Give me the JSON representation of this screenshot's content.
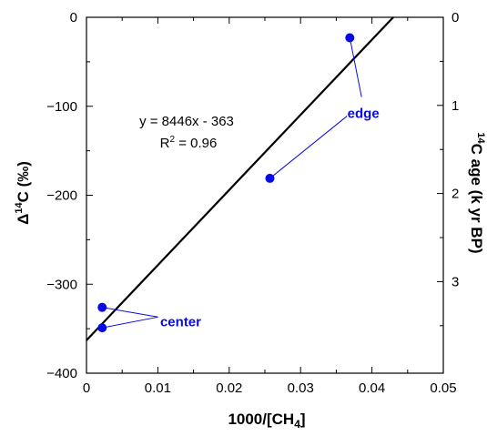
{
  "chart_data": {
    "type": "scatter",
    "xlim": [
      0,
      0.05
    ],
    "ylim": [
      -400,
      0
    ],
    "x_ticks": [
      {
        "value": 0,
        "label": "0"
      },
      {
        "value": 0.01,
        "label": "0.01"
      },
      {
        "value": 0.02,
        "label": "0.02"
      },
      {
        "value": 0.03,
        "label": "0.03"
      },
      {
        "value": 0.04,
        "label": "0.04"
      },
      {
        "value": 0.05,
        "label": "0.05"
      }
    ],
    "y_ticks": [
      {
        "value": 0,
        "label": "0"
      },
      {
        "value": -100,
        "label": "−100"
      },
      {
        "value": -200,
        "label": "−200"
      },
      {
        "value": -300,
        "label": "−300"
      },
      {
        "value": -400,
        "label": "−400"
      }
    ],
    "y2_ticks": [
      {
        "value": 0,
        "label": "0"
      },
      {
        "value": 1,
        "label": "1"
      },
      {
        "value": 2,
        "label": "2"
      },
      {
        "value": 3,
        "label": "3"
      }
    ],
    "x_label": {
      "main": "1000/[CH",
      "sub": "4",
      "tail": "]"
    },
    "y_label": {
      "main": "Δ",
      "sup": "14",
      "tail": "C (‰)"
    },
    "y2_label": {
      "sup": "14",
      "tail": "C age (k yr BP)"
    },
    "points": [
      {
        "x": 0.0022,
        "y": -326,
        "group": "center"
      },
      {
        "x": 0.0022,
        "y": -349,
        "group": "center"
      },
      {
        "x": 0.0257,
        "y": -181,
        "group": "edge"
      },
      {
        "x": 0.0369,
        "y": -23,
        "group": "edge"
      }
    ],
    "fit": {
      "slope": 8446,
      "intercept": -363,
      "x_range": [
        0,
        0.043
      ]
    },
    "equation": "y = 8446x - 363",
    "r2": {
      "pre": "R",
      "sup": "2",
      "post": " = 0.96"
    },
    "annotations": [
      {
        "text": "edge",
        "x": 0.0388,
        "y": -108,
        "targets": [
          3,
          2
        ]
      },
      {
        "text": "center",
        "x": 0.0132,
        "y": -342,
        "targets": [
          0,
          1
        ]
      }
    ],
    "colors": {
      "points": "#0a0ae6",
      "fit_line": "#000000",
      "axes": "#000000"
    }
  }
}
